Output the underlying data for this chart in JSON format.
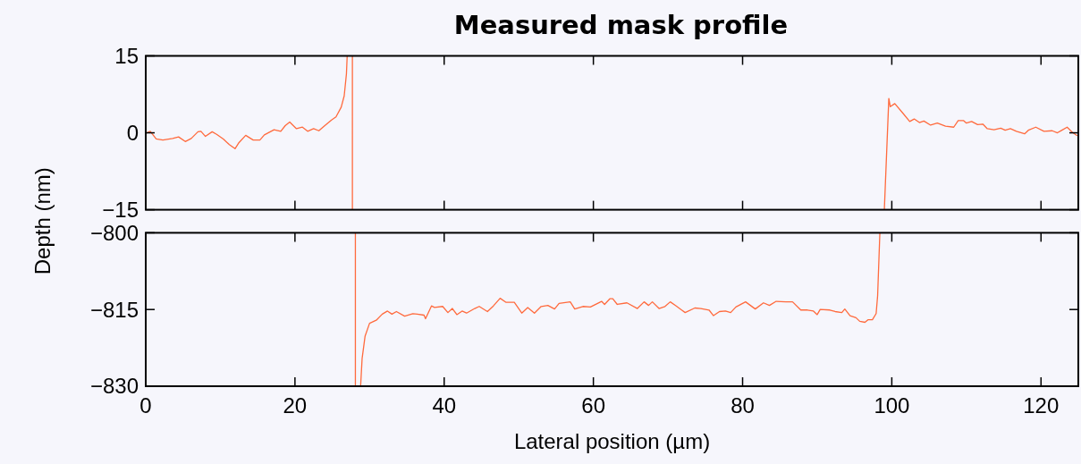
{
  "chart_data": [
    {
      "type": "line",
      "title": "Measured mask profile",
      "xlim": [
        0,
        125
      ],
      "ylim": [
        -15,
        15
      ],
      "tick_labels": "y",
      "line_style": "solid",
      "xticks": [
        0,
        20,
        40,
        60,
        80,
        100,
        120
      ],
      "yticks": [
        {
          "value": -15,
          "label": "−15"
        },
        0,
        15
      ],
      "series": [
        {
          "color": "#ff6a3d",
          "x": [
            0.15,
            0.6,
            1.4,
            2.3,
            3.6,
            4.4,
            5.3,
            6.1,
            7.0,
            7.4,
            8.0,
            8.9,
            9.5,
            10.4,
            11.2,
            11.97,
            12.5,
            13.4,
            14.4,
            15.3,
            15.9,
            17.2,
            18.1,
            18.7,
            19.3,
            20.2,
            21.0,
            21.7,
            22.5,
            23.2,
            24.0,
            24.9,
            25.5,
            26.2,
            26.6,
            26.9,
            27.0,
            27.3,
            27.7,
            27.7,
            60,
            99.0,
            99.6,
            99.8,
            100.4,
            101.5,
            102.4,
            103.0,
            103.7,
            104.3,
            105.2,
            106.1,
            107.2,
            108.3,
            108.9,
            109.6,
            110.0,
            110.7,
            111.5,
            112.2,
            112.8,
            113.7,
            114.6,
            115.2,
            115.9,
            116.7,
            117.4,
            117.8,
            118.3,
            119.3,
            120.4,
            121.5,
            122.2,
            122.8,
            123.5,
            124.2,
            124.8
          ],
          "values": [
            0,
            0.3,
            -1.2,
            -1.4,
            -1.1,
            -0.8,
            -1.7,
            -1.1,
            0.2,
            0.3,
            -0.7,
            0.2,
            -0.3,
            -1.2,
            -2.3,
            -3.1,
            -1.9,
            -0.5,
            -1.4,
            -1.4,
            -0.4,
            0.6,
            0.3,
            1.4,
            2.1,
            0.8,
            1.1,
            0.3,
            0.8,
            0.4,
            1.4,
            2.5,
            3.1,
            5.0,
            7.2,
            11.5,
            15,
            null,
            15,
            -15,
            null,
            -15,
            6.7,
            5.1,
            5.7,
            3.8,
            2.2,
            2.7,
            2.0,
            2.3,
            1.5,
            1.9,
            1.3,
            1.1,
            2.4,
            2.4,
            1.9,
            2.2,
            1.6,
            1.7,
            0.8,
            0.6,
            0.9,
            0.5,
            0.8,
            0.3,
            0,
            -0.2,
            0.5,
            1.1,
            0.3,
            0.4,
            0,
            0.5,
            1.1,
            0.1,
            -0.5
          ]
        }
      ]
    },
    {
      "type": "line",
      "xlabel": "Lateral position (µm)",
      "ylabel": "Depth (nm)",
      "xlim": [
        0,
        125
      ],
      "ylim": [
        -830,
        -800
      ],
      "line_style": "solid",
      "xticks": [
        0,
        20,
        40,
        60,
        80,
        100,
        120
      ],
      "yticks": [
        {
          "value": -830,
          "label": "−830"
        },
        {
          "value": -815,
          "label": "−815"
        },
        {
          "value": -800,
          "label": "−800"
        }
      ],
      "series": [
        {
          "color": "#ff6a3d",
          "x": [
            28.1,
            28.1,
            28.4,
            28.8,
            29.0,
            29.4,
            30.0,
            30.9,
            31.7,
            32.4,
            33.0,
            33.6,
            34.7,
            35.8,
            36.4,
            37.3,
            37.5,
            38.3,
            38.7,
            39.8,
            40.5,
            41.1,
            41.7,
            42.4,
            43.0,
            44.1,
            44.7,
            45.8,
            46.6,
            47.5,
            48.3,
            49.4,
            50.4,
            51.2,
            52.1,
            53.0,
            53.9,
            54.8,
            55.4,
            56.9,
            57.5,
            58.6,
            59.6,
            61.1,
            61.5,
            62.2,
            62.6,
            63.2,
            64.5,
            65.9,
            66.8,
            67.4,
            67.9,
            68.8,
            69.6,
            70.3,
            71.1,
            72.3,
            73.6,
            74.4,
            75.5,
            76.1,
            76.9,
            77.7,
            78.4,
            79.1,
            80.4,
            81.7,
            82.8,
            83.6,
            84.5,
            85.8,
            86.7,
            87.8,
            88.7,
            89.5,
            90.0,
            90.4,
            91.7,
            92.4,
            93.3,
            93.7,
            94.4,
            95.2,
            95.7,
            96.4,
            96.8,
            97.4,
            97.9,
            98.1,
            98.4
          ],
          "values": [
            -800,
            -830,
            null,
            -830,
            -824.6,
            -820.2,
            -817.7,
            -817.1,
            -815.9,
            -815.3,
            -815.9,
            -815.4,
            -816.3,
            -815.8,
            -815.9,
            -816.1,
            -816.8,
            -814.3,
            -814.6,
            -814.4,
            -815.6,
            -814.8,
            -816,
            -815.3,
            -815.7,
            -814.8,
            -814.4,
            -815.4,
            -814.3,
            -812.8,
            -813.6,
            -813.6,
            -815.7,
            -814.6,
            -815.7,
            -814.4,
            -814.2,
            -814.9,
            -813.8,
            -813.5,
            -814.9,
            -814.4,
            -814.5,
            -813.4,
            -814.0,
            -812.9,
            -812.9,
            -814.0,
            -813.7,
            -814.8,
            -813.5,
            -814.2,
            -813.5,
            -814.8,
            -814.4,
            -813.5,
            -814.3,
            -815.6,
            -814.7,
            -814.8,
            -815.1,
            -816.2,
            -815.4,
            -815.3,
            -815.6,
            -814.5,
            -813.5,
            -814.9,
            -813.7,
            -814.2,
            -813.4,
            -813.5,
            -813.5,
            -815.1,
            -815.1,
            -815.3,
            -816.0,
            -815,
            -815.1,
            -815.4,
            -815.6,
            -814.9,
            -816.2,
            -816.6,
            -817.3,
            -817.5,
            -817,
            -817,
            -815.8,
            -812.3,
            -800
          ]
        }
      ]
    }
  ]
}
